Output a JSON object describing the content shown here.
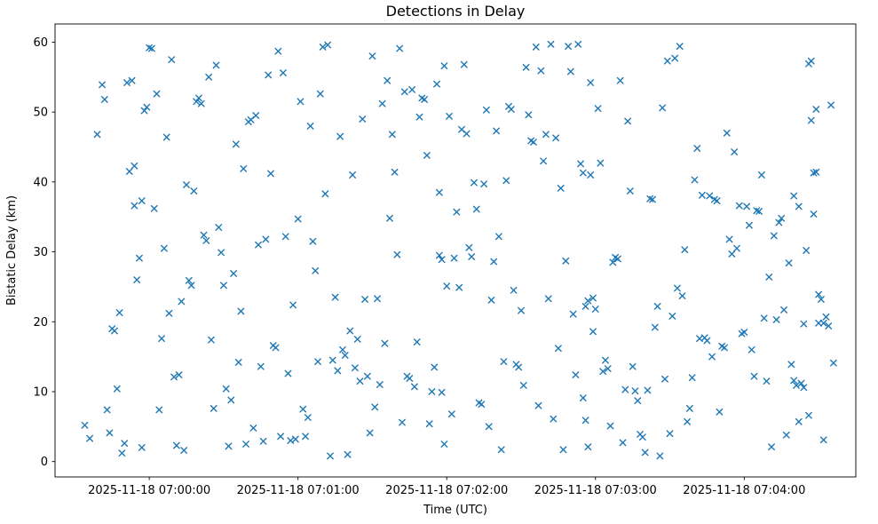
{
  "figure": {
    "title": "Detections in Delay",
    "xlabel": "Time (UTC)",
    "ylabel": "Bistatic Delay (km)"
  },
  "chart_data": {
    "type": "scatter",
    "title": "Detections in Delay",
    "xlabel": "Time (UTC)",
    "ylabel": "Bistatic Delay (km)",
    "marker": "x",
    "marker_color": "#1f77b4",
    "background_color": "#ffffff",
    "grid": false,
    "legend": "none",
    "x_base": "2025-11-18 07:00:00 UTC",
    "x_unit": "seconds relative to 2025-11-18 07:00:00",
    "x_domain_seconds": [
      -38,
      285
    ],
    "ylim": [
      -2.2,
      62.6
    ],
    "y_ticks": [
      0,
      10,
      20,
      30,
      40,
      50,
      60
    ],
    "x_ticks": [
      {
        "t": 0,
        "label": "2025-11-18 07:00:00"
      },
      {
        "t": 60,
        "label": "2025-11-18 07:01:00"
      },
      {
        "t": 120,
        "label": "2025-11-18 07:02:00"
      },
      {
        "t": 180,
        "label": "2025-11-18 07:03:00"
      },
      {
        "t": 240,
        "label": "2025-11-18 07:04:00"
      }
    ],
    "points": [
      [
        -26,
        5.2
      ],
      [
        -24,
        3.3
      ],
      [
        -21,
        46.8
      ],
      [
        -19,
        53.9
      ],
      [
        -18,
        51.8
      ],
      [
        -17,
        7.4
      ],
      [
        -16,
        4.1
      ],
      [
        -15,
        19.0
      ],
      [
        -14,
        18.7
      ],
      [
        -13,
        10.4
      ],
      [
        -12,
        21.3
      ],
      [
        -11,
        1.2
      ],
      [
        -10,
        2.6
      ],
      [
        -9,
        54.2
      ],
      [
        -8,
        41.5
      ],
      [
        -7,
        54.5
      ],
      [
        -6,
        42.3
      ],
      [
        -5,
        26.0
      ],
      [
        -4,
        29.1
      ],
      [
        -3,
        37.3
      ],
      [
        -2,
        50.2
      ],
      [
        -1,
        50.7
      ],
      [
        -3,
        2.0
      ],
      [
        -6,
        36.6
      ],
      [
        0,
        59.2
      ],
      [
        1,
        59.1
      ],
      [
        2,
        36.2
      ],
      [
        3,
        52.6
      ],
      [
        4,
        7.4
      ],
      [
        5,
        17.6
      ],
      [
        6,
        30.5
      ],
      [
        7,
        46.4
      ],
      [
        8,
        21.2
      ],
      [
        9,
        57.5
      ],
      [
        10,
        12.1
      ],
      [
        11,
        2.3
      ],
      [
        12,
        12.4
      ],
      [
        13,
        22.9
      ],
      [
        14,
        1.6
      ],
      [
        15,
        39.6
      ],
      [
        16,
        25.9
      ],
      [
        17,
        25.2
      ],
      [
        18,
        38.7
      ],
      [
        19,
        51.5
      ],
      [
        20,
        52.0
      ],
      [
        21,
        51.2
      ],
      [
        22,
        32.4
      ],
      [
        23,
        31.6
      ],
      [
        24,
        55.0
      ],
      [
        25,
        17.4
      ],
      [
        26,
        7.6
      ],
      [
        27,
        56.7
      ],
      [
        28,
        33.5
      ],
      [
        29,
        29.9
      ],
      [
        30,
        25.2
      ],
      [
        31,
        10.4
      ],
      [
        32,
        2.2
      ],
      [
        33,
        8.8
      ],
      [
        34,
        26.9
      ],
      [
        35,
        45.4
      ],
      [
        36,
        14.2
      ],
      [
        37,
        21.5
      ],
      [
        38,
        41.9
      ],
      [
        39,
        2.5
      ],
      [
        40,
        48.6
      ],
      [
        41,
        48.9
      ],
      [
        42,
        4.8
      ],
      [
        43,
        49.5
      ],
      [
        44,
        31.0
      ],
      [
        45,
        13.6
      ],
      [
        46,
        2.9
      ],
      [
        47,
        31.8
      ],
      [
        48,
        55.3
      ],
      [
        49,
        41.2
      ],
      [
        50,
        16.6
      ],
      [
        51,
        16.3
      ],
      [
        52,
        58.7
      ],
      [
        53,
        3.6
      ],
      [
        54,
        55.6
      ],
      [
        55,
        32.2
      ],
      [
        56,
        12.6
      ],
      [
        57,
        3.0
      ],
      [
        58,
        22.4
      ],
      [
        59,
        3.2
      ],
      [
        60,
        34.7
      ],
      [
        61,
        51.5
      ],
      [
        62,
        7.5
      ],
      [
        63,
        3.6
      ],
      [
        64,
        6.3
      ],
      [
        65,
        48.0
      ],
      [
        66,
        31.5
      ],
      [
        67,
        27.3
      ],
      [
        68,
        14.3
      ],
      [
        69,
        52.6
      ],
      [
        70,
        59.3
      ],
      [
        71,
        38.3
      ],
      [
        72,
        59.6
      ],
      [
        73,
        0.8
      ],
      [
        74,
        14.5
      ],
      [
        75,
        23.5
      ],
      [
        76,
        13.0
      ],
      [
        77,
        46.5
      ],
      [
        78,
        16.0
      ],
      [
        79,
        15.2
      ],
      [
        80,
        1.0
      ],
      [
        81,
        18.7
      ],
      [
        82,
        41.0
      ],
      [
        83,
        13.4
      ],
      [
        84,
        17.5
      ],
      [
        85,
        11.5
      ],
      [
        86,
        49.0
      ],
      [
        87,
        23.2
      ],
      [
        88,
        12.2
      ],
      [
        89,
        4.1
      ],
      [
        90,
        58.0
      ],
      [
        91,
        7.8
      ],
      [
        92,
        23.3
      ],
      [
        93,
        11.0
      ],
      [
        94,
        51.2
      ],
      [
        95,
        16.9
      ],
      [
        96,
        54.5
      ],
      [
        97,
        34.8
      ],
      [
        98,
        46.8
      ],
      [
        99,
        41.4
      ],
      [
        100,
        29.6
      ],
      [
        101,
        59.1
      ],
      [
        102,
        5.6
      ],
      [
        103,
        52.9
      ],
      [
        104,
        12.2
      ],
      [
        105,
        11.9
      ],
      [
        106,
        53.2
      ],
      [
        107,
        10.7
      ],
      [
        108,
        17.1
      ],
      [
        109,
        49.3
      ],
      [
        110,
        52.0
      ],
      [
        111,
        51.8
      ],
      [
        112,
        43.8
      ],
      [
        113,
        5.4
      ],
      [
        114,
        10.0
      ],
      [
        115,
        13.5
      ],
      [
        116,
        54.0
      ],
      [
        117,
        29.5
      ],
      [
        118,
        28.9
      ],
      [
        119,
        56.6
      ],
      [
        118,
        9.9
      ],
      [
        119,
        2.5
      ],
      [
        117,
        38.5
      ],
      [
        120,
        25.1
      ],
      [
        121,
        49.4
      ],
      [
        122,
        6.8
      ],
      [
        123,
        29.1
      ],
      [
        124,
        35.7
      ],
      [
        125,
        24.9
      ],
      [
        126,
        47.5
      ],
      [
        127,
        56.8
      ],
      [
        128,
        46.9
      ],
      [
        129,
        30.6
      ],
      [
        130,
        29.3
      ],
      [
        131,
        39.9
      ],
      [
        132,
        36.1
      ],
      [
        133,
        8.4
      ],
      [
        134,
        8.2
      ],
      [
        135,
        39.7
      ],
      [
        136,
        50.3
      ],
      [
        137,
        5.0
      ],
      [
        138,
        23.1
      ],
      [
        139,
        28.6
      ],
      [
        140,
        47.3
      ],
      [
        141,
        32.2
      ],
      [
        142,
        1.7
      ],
      [
        143,
        14.3
      ],
      [
        144,
        40.2
      ],
      [
        145,
        50.8
      ],
      [
        146,
        50.4
      ],
      [
        147,
        24.5
      ],
      [
        148,
        13.9
      ],
      [
        149,
        13.5
      ],
      [
        150,
        21.6
      ],
      [
        151,
        10.9
      ],
      [
        152,
        56.4
      ],
      [
        153,
        49.6
      ],
      [
        154,
        45.9
      ],
      [
        155,
        45.7
      ],
      [
        156,
        59.3
      ],
      [
        157,
        8.0
      ],
      [
        158,
        55.9
      ],
      [
        159,
        43.0
      ],
      [
        160,
        46.8
      ],
      [
        161,
        23.3
      ],
      [
        162,
        59.7
      ],
      [
        163,
        6.1
      ],
      [
        164,
        46.3
      ],
      [
        165,
        16.2
      ],
      [
        166,
        39.1
      ],
      [
        167,
        1.7
      ],
      [
        168,
        28.7
      ],
      [
        169,
        59.4
      ],
      [
        170,
        55.8
      ],
      [
        171,
        21.1
      ],
      [
        172,
        12.4
      ],
      [
        173,
        59.7
      ],
      [
        174,
        42.6
      ],
      [
        175,
        41.3
      ],
      [
        176,
        22.2
      ],
      [
        177,
        2.1
      ],
      [
        178,
        41.0
      ],
      [
        179,
        23.4
      ],
      [
        175,
        9.1
      ],
      [
        176,
        5.9
      ],
      [
        178,
        54.2
      ],
      [
        179,
        18.6
      ],
      [
        177,
        23.0
      ],
      [
        180,
        21.8
      ],
      [
        181,
        50.5
      ],
      [
        182,
        42.7
      ],
      [
        183,
        12.9
      ],
      [
        184,
        14.5
      ],
      [
        185,
        13.3
      ],
      [
        186,
        5.1
      ],
      [
        187,
        28.5
      ],
      [
        188,
        29.2
      ],
      [
        189,
        29.0
      ],
      [
        190,
        54.5
      ],
      [
        191,
        2.7
      ],
      [
        192,
        10.3
      ],
      [
        193,
        48.7
      ],
      [
        194,
        38.7
      ],
      [
        195,
        13.6
      ],
      [
        196,
        10.1
      ],
      [
        197,
        8.7
      ],
      [
        198,
        3.9
      ],
      [
        199,
        3.5
      ],
      [
        200,
        1.3
      ],
      [
        201,
        10.2
      ],
      [
        202,
        37.6
      ],
      [
        203,
        37.5
      ],
      [
        204,
        19.2
      ],
      [
        205,
        22.2
      ],
      [
        206,
        0.8
      ],
      [
        207,
        50.6
      ],
      [
        208,
        11.8
      ],
      [
        209,
        57.3
      ],
      [
        210,
        4.0
      ],
      [
        211,
        20.8
      ],
      [
        212,
        57.7
      ],
      [
        213,
        24.8
      ],
      [
        214,
        59.4
      ],
      [
        215,
        23.7
      ],
      [
        216,
        30.3
      ],
      [
        217,
        5.7
      ],
      [
        218,
        7.6
      ],
      [
        219,
        12.0
      ],
      [
        220,
        40.3
      ],
      [
        221,
        44.8
      ],
      [
        222,
        17.6
      ],
      [
        223,
        38.1
      ],
      [
        224,
        17.7
      ],
      [
        225,
        17.3
      ],
      [
        226,
        38.0
      ],
      [
        227,
        15.0
      ],
      [
        228,
        37.5
      ],
      [
        229,
        37.3
      ],
      [
        230,
        7.1
      ],
      [
        231,
        16.5
      ],
      [
        232,
        16.3
      ],
      [
        233,
        47.0
      ],
      [
        234,
        31.8
      ],
      [
        235,
        29.7
      ],
      [
        236,
        44.3
      ],
      [
        237,
        30.5
      ],
      [
        238,
        36.6
      ],
      [
        239,
        18.3
      ],
      [
        240,
        18.5
      ],
      [
        241,
        36.5
      ],
      [
        242,
        33.8
      ],
      [
        243,
        16.0
      ],
      [
        244,
        12.2
      ],
      [
        245,
        35.9
      ],
      [
        246,
        35.8
      ],
      [
        247,
        41.0
      ],
      [
        248,
        20.5
      ],
      [
        249,
        11.5
      ],
      [
        250,
        26.4
      ],
      [
        251,
        2.1
      ],
      [
        252,
        32.3
      ],
      [
        253,
        20.3
      ],
      [
        254,
        34.2
      ],
      [
        255,
        34.8
      ],
      [
        256,
        21.7
      ],
      [
        257,
        3.8
      ],
      [
        258,
        28.4
      ],
      [
        259,
        13.9
      ],
      [
        260,
        38.0
      ],
      [
        261,
        10.9
      ],
      [
        262,
        36.5
      ],
      [
        263,
        11.2
      ],
      [
        264,
        19.7
      ],
      [
        265,
        30.2
      ],
      [
        266,
        6.6
      ],
      [
        267,
        48.8
      ],
      [
        268,
        41.3
      ],
      [
        269,
        41.4
      ],
      [
        270,
        19.8
      ],
      [
        271,
        23.2
      ],
      [
        272,
        19.8
      ],
      [
        260,
        11.6
      ],
      [
        262,
        5.7
      ],
      [
        264,
        10.6
      ],
      [
        266,
        56.9
      ],
      [
        267,
        57.3
      ],
      [
        268,
        35.4
      ],
      [
        269,
        50.4
      ],
      [
        270,
        23.9
      ],
      [
        272,
        3.1
      ],
      [
        273,
        20.7
      ],
      [
        274,
        19.4
      ],
      [
        275,
        51.0
      ],
      [
        276,
        14.1
      ]
    ]
  }
}
